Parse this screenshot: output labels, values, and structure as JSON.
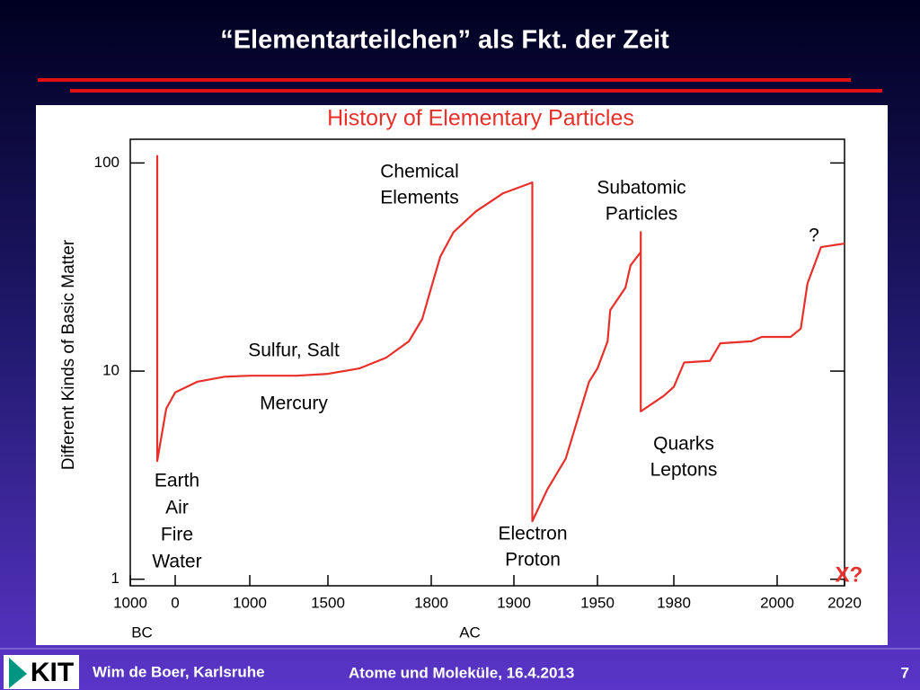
{
  "slide": {
    "title": "“Elementarteilchen” als Fkt. der Zeit",
    "footer_author": "Wim de Boer, Karlsruhe",
    "footer_course": "Atome und Moleküle,  16.4.2013",
    "page_number": "7",
    "logo": "KIT"
  },
  "chart_data": {
    "type": "line",
    "title": "History of Elementary Particles",
    "y_label": "Different Kinds of Basic Matter",
    "x_sublabels": [
      "BC",
      "AC"
    ],
    "log_scale_y": true,
    "color": "#e8302a",
    "x": [
      -400,
      -400,
      -200,
      0,
      301,
      663,
      1000,
      1299,
      1500,
      1591,
      1669,
      1735,
      1774,
      1800,
      1811,
      1827,
      1854,
      1887,
      1911,
      1911,
      1920,
      1931,
      1945,
      1950,
      1954,
      1955,
      1961,
      1963,
      1967,
      1967,
      1967,
      1976,
      1980,
      1982,
      1987,
      1989,
      1995,
      1997,
      2004,
      2007,
      2009,
      2013,
      2020
    ],
    "values": [
      109,
      3.7,
      6.6,
      7.9,
      8.9,
      9.4,
      9.5,
      9.5,
      9.7,
      10.3,
      11.6,
      13.9,
      17.8,
      25.2,
      35.5,
      46.5,
      58.5,
      71.5,
      80.6,
      1.9,
      2.7,
      3.8,
      8.9,
      10.3,
      13.9,
      19.6,
      25.2,
      32.2,
      37.3,
      46.5,
      6.4,
      7.6,
      8.4,
      11,
      11.2,
      13.6,
      13.9,
      14.6,
      14.6,
      16,
      26.4,
      39.4,
      41
    ],
    "xlim": [
      -1000,
      2020
    ],
    "xticks": [
      {
        "value": -1000,
        "label": "1000"
      },
      0,
      1000,
      1500,
      1800,
      1900,
      1950,
      1980,
      2000,
      2020
    ],
    "ylim": [
      0.93,
      130
    ],
    "yticks": [
      1,
      10,
      100
    ],
    "annotations": [
      {
        "lines": [
          "Chemical",
          "Elements"
        ]
      },
      {
        "lines": [
          "Subatomic",
          "Particles"
        ]
      },
      {
        "lines": [
          "Sulfur, Salt"
        ]
      },
      {
        "lines": [
          "Mercury"
        ]
      },
      {
        "lines": [
          "Earth",
          "Air",
          "Fire",
          "Water"
        ]
      },
      {
        "lines": [
          "Electron",
          "Proton"
        ]
      },
      {
        "lines": [
          "Quarks",
          "Leptons"
        ]
      },
      {
        "lines": [
          "?"
        ]
      },
      {
        "lines": [
          "X?"
        ]
      }
    ]
  }
}
